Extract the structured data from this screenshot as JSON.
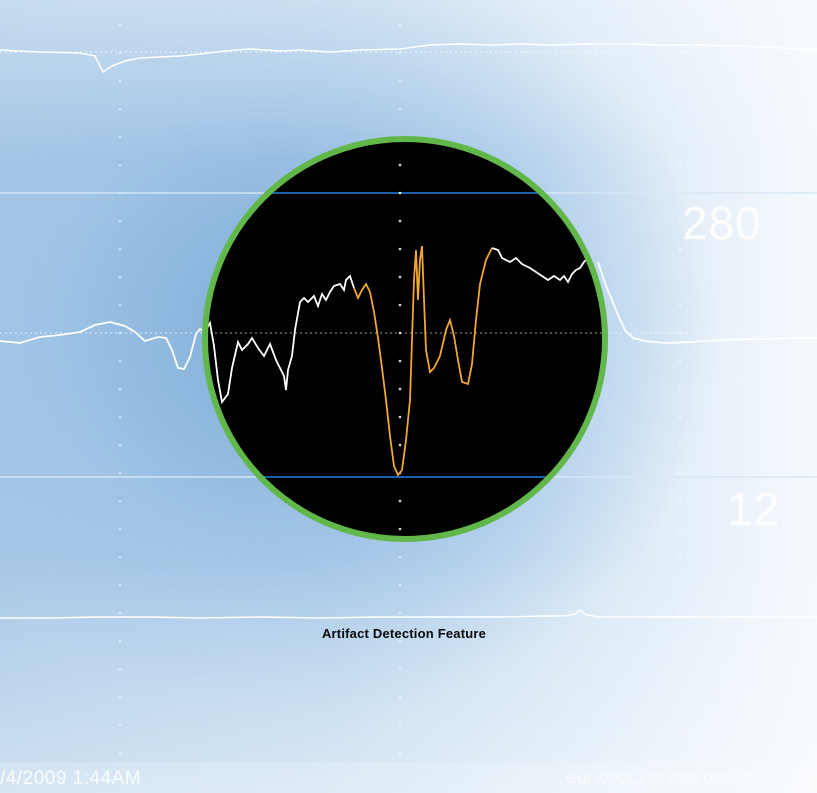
{
  "monitor": {
    "values": {
      "upper_reading": "280",
      "lower_reading": "12"
    },
    "caption": "Artifact Detection Feature",
    "status_bar": {
      "datetime": "/4/2009  1:44AM",
      "version": "GUI v2009.2.26.9999   DSP v2"
    },
    "colors": {
      "lens_ring": "#62b74a",
      "lens_background": "#000000",
      "threshold_lines": "#1a5fa8",
      "clean_trace": "#ffffff",
      "artifact_trace": "#f0a830"
    },
    "icons": {
      "lens": "magnifier-lens-icon"
    }
  }
}
